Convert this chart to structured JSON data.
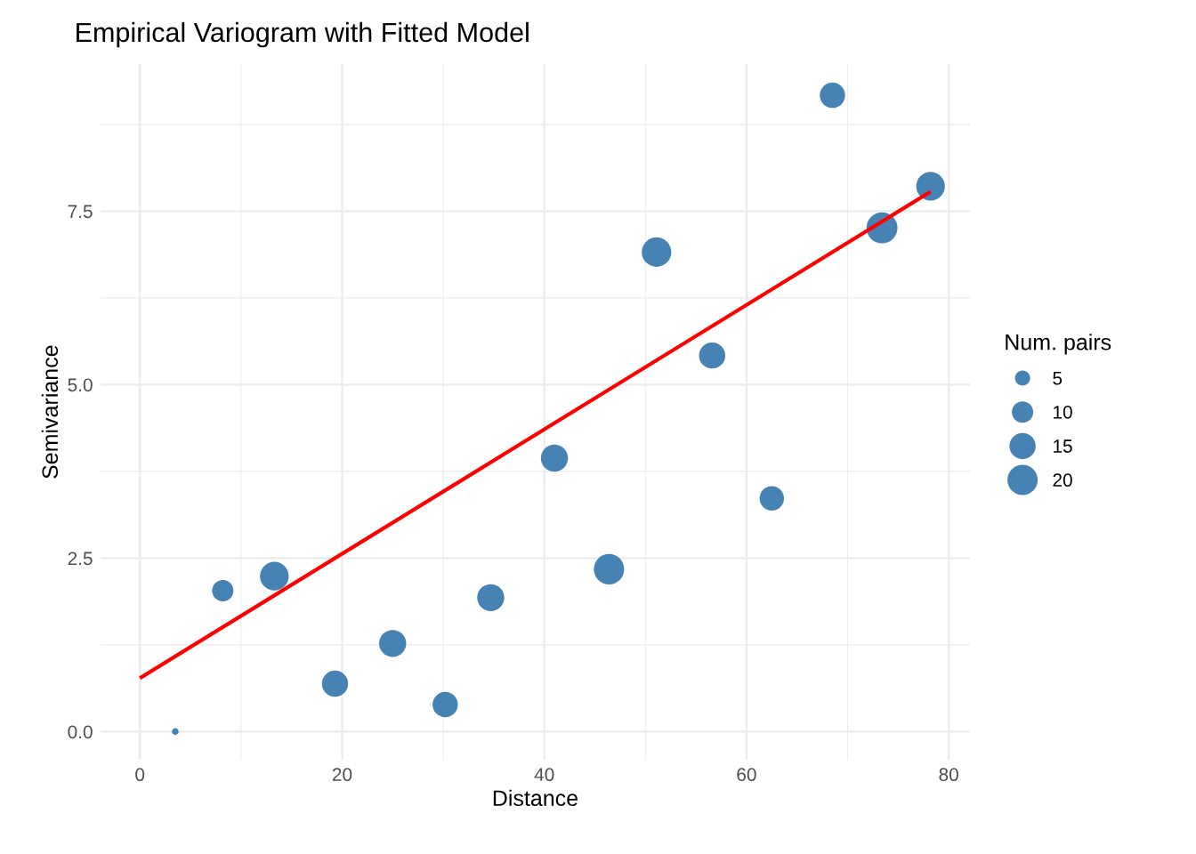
{
  "chart_data": {
    "type": "bubble",
    "title": "Empirical Variogram with Fitted Model",
    "xlabel": "Distance",
    "ylabel": "Semivariance",
    "legend_title": "Num. pairs",
    "series": [
      {
        "color": "#4682b4",
        "x": [
          3.5,
          8.2,
          13.3,
          19.3,
          25.0,
          30.2,
          34.7,
          41.0,
          46.4,
          51.1,
          56.6,
          62.5,
          68.5,
          73.4,
          78.2
        ],
        "values": [
          0.0,
          2.03,
          2.24,
          0.69,
          1.27,
          0.39,
          1.93,
          3.94,
          2.34,
          6.91,
          5.42,
          3.36,
          9.17,
          7.26,
          7.86
        ],
        "sizes": [
          1,
          10,
          18,
          15,
          16,
          14,
          16,
          16,
          20,
          19,
          15,
          13,
          14,
          21,
          18
        ]
      },
      {
        "type": "line",
        "color": "#ff0000",
        "x": [
          0,
          78.2
        ],
        "values": [
          0.77,
          7.78
        ]
      }
    ],
    "size_legend": [
      5,
      10,
      15,
      20
    ],
    "xlim": [
      -3.9,
      82.1
    ],
    "xticks": [
      0,
      20,
      40,
      60,
      80
    ],
    "ylim": [
      -0.41,
      9.62
    ],
    "yticks": [
      {
        "value": 0,
        "label": "0.0"
      },
      {
        "value": 2.5,
        "label": "2.5"
      },
      {
        "value": 5,
        "label": "5.0"
      },
      {
        "value": 7.5,
        "label": "7.5"
      }
    ],
    "grid": true
  }
}
